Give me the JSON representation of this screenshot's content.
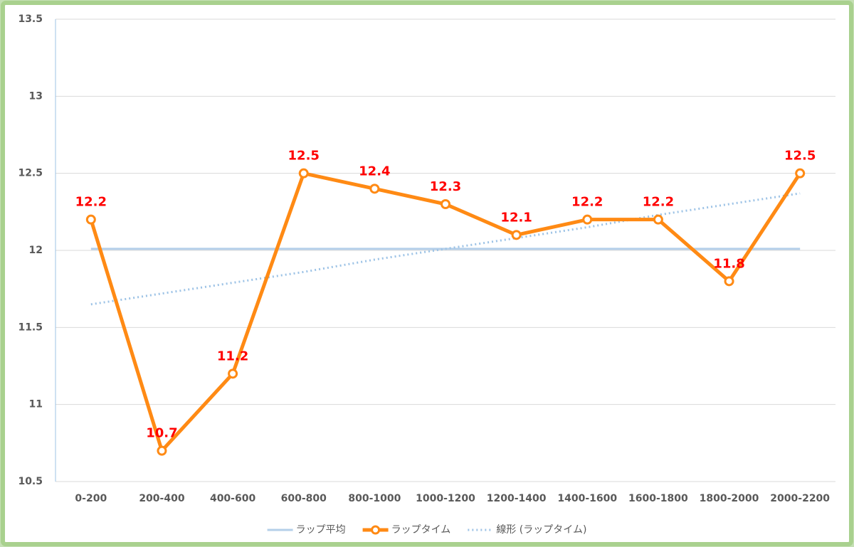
{
  "chart_data": {
    "type": "line",
    "categories": [
      "0-200",
      "200-400",
      "400-600",
      "600-800",
      "800-1000",
      "1000-1200",
      "1200-1400",
      "1400-1600",
      "1600-1800",
      "1800-2000",
      "2000-2200"
    ],
    "series": [
      {
        "name": "ラップ平均",
        "color": "#b4cfe9",
        "style": "solid",
        "values": [
          12.01,
          12.01,
          12.01,
          12.01,
          12.01,
          12.01,
          12.01,
          12.01,
          12.01,
          12.01,
          12.01
        ]
      },
      {
        "name": "ラップタイム",
        "color": "#ff8a14",
        "style": "marker",
        "data_labels": true,
        "label_color": "#ff0000",
        "values": [
          12.2,
          10.7,
          11.2,
          12.5,
          12.4,
          12.3,
          12.1,
          12.2,
          12.2,
          11.8,
          12.5
        ]
      },
      {
        "name": "線形 (ラップタイム)",
        "color": "#9dc3e6",
        "style": "dotted",
        "values": [
          11.65,
          11.72,
          11.79,
          11.86,
          11.94,
          12.01,
          12.08,
          12.15,
          12.23,
          12.3,
          12.37
        ]
      }
    ],
    "ylim": [
      10.5,
      13.5
    ],
    "yticks": [
      10.5,
      11,
      11.5,
      12,
      12.5,
      13,
      13.5
    ],
    "grid": true,
    "legend": "bottom"
  }
}
